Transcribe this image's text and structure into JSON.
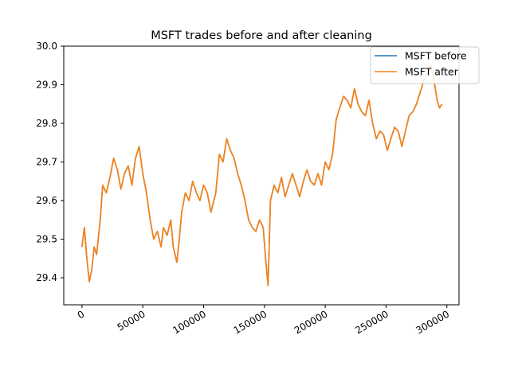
{
  "chart_data": {
    "type": "line",
    "title": "MSFT trades before and after cleaning",
    "xlabel": "",
    "ylabel": "",
    "xlim": [
      -15000,
      310000
    ],
    "ylim": [
      29.33,
      30.0
    ],
    "x_ticks": [
      0,
      50000,
      100000,
      150000,
      200000,
      250000,
      300000
    ],
    "x_tick_labels": [
      "0",
      "50000",
      "100000",
      "150000",
      "200000",
      "250000",
      "300000"
    ],
    "y_ticks": [
      29.4,
      29.5,
      29.6,
      29.7,
      29.8,
      29.9,
      30.0
    ],
    "y_tick_labels": [
      "29.4",
      "29.5",
      "29.6",
      "29.7",
      "29.8",
      "29.9",
      "30.0"
    ],
    "grid": false,
    "legend_position": "top-right",
    "series": [
      {
        "name": "MSFT before",
        "color": "#1f77b4",
        "x": [
          0,
          2000,
          4000,
          6000,
          8000,
          10000,
          12000,
          15000,
          17000,
          20000,
          23000,
          26000,
          29000,
          32000,
          35000,
          38000,
          41000,
          44000,
          47000,
          50000,
          53000,
          56000,
          59000,
          62000,
          65000,
          67000,
          70000,
          73000,
          75000,
          78000,
          80000,
          82000,
          85000,
          88000,
          91000,
          94000,
          97000,
          100000,
          103000,
          106000,
          110000,
          113000,
          116000,
          119000,
          122000,
          125000,
          128000,
          131000,
          134000,
          137000,
          140000,
          143000,
          146000,
          149000,
          151000,
          153000,
          155000,
          158000,
          161000,
          164000,
          167000,
          170000,
          173000,
          176000,
          179000,
          182000,
          185000,
          188000,
          191000,
          194000,
          197000,
          200000,
          203000,
          206000,
          209000,
          212000,
          215000,
          218000,
          221000,
          224000,
          227000,
          230000,
          233000,
          236000,
          239000,
          242000,
          245000,
          248000,
          251000,
          254000,
          257000,
          260000,
          263000,
          266000,
          269000,
          272000,
          275000,
          278000,
          281000,
          284000,
          287000,
          290000,
          292000,
          294000,
          296000
        ],
        "values": [
          29.48,
          29.53,
          29.45,
          29.39,
          29.42,
          29.48,
          29.46,
          29.55,
          29.64,
          29.62,
          29.66,
          29.71,
          29.68,
          29.63,
          29.67,
          29.69,
          29.64,
          29.71,
          29.74,
          29.67,
          29.62,
          29.55,
          29.5,
          29.52,
          29.48,
          29.53,
          29.51,
          29.55,
          29.48,
          29.44,
          29.5,
          29.57,
          29.62,
          29.6,
          29.65,
          29.62,
          29.6,
          29.64,
          29.62,
          29.57,
          29.62,
          29.72,
          29.7,
          29.76,
          29.73,
          29.71,
          29.67,
          29.64,
          29.6,
          29.55,
          29.53,
          29.52,
          29.55,
          29.53,
          29.45,
          29.38,
          29.6,
          29.64,
          29.62,
          29.66,
          29.61,
          29.64,
          29.67,
          29.64,
          29.61,
          29.65,
          29.68,
          29.65,
          29.64,
          29.67,
          29.64,
          29.7,
          29.68,
          29.72,
          29.81,
          29.84,
          29.87,
          29.86,
          29.84,
          29.89,
          29.85,
          29.83,
          29.82,
          29.86,
          29.8,
          29.76,
          29.78,
          29.77,
          29.73,
          29.76,
          29.79,
          29.78,
          29.74,
          29.78,
          29.82,
          29.83,
          29.85,
          29.88,
          29.91,
          29.93,
          29.95,
          29.9,
          29.86,
          29.84,
          29.85
        ]
      },
      {
        "name": "MSFT after",
        "color": "#ff7f0e",
        "x": [
          0,
          2000,
          4000,
          6000,
          8000,
          10000,
          12000,
          15000,
          17000,
          20000,
          23000,
          26000,
          29000,
          32000,
          35000,
          38000,
          41000,
          44000,
          47000,
          50000,
          53000,
          56000,
          59000,
          62000,
          65000,
          67000,
          70000,
          73000,
          75000,
          78000,
          80000,
          82000,
          85000,
          88000,
          91000,
          94000,
          97000,
          100000,
          103000,
          106000,
          110000,
          113000,
          116000,
          119000,
          122000,
          125000,
          128000,
          131000,
          134000,
          137000,
          140000,
          143000,
          146000,
          149000,
          151000,
          153000,
          155000,
          158000,
          161000,
          164000,
          167000,
          170000,
          173000,
          176000,
          179000,
          182000,
          185000,
          188000,
          191000,
          194000,
          197000,
          200000,
          203000,
          206000,
          209000,
          212000,
          215000,
          218000,
          221000,
          224000,
          227000,
          230000,
          233000,
          236000,
          239000,
          242000,
          245000,
          248000,
          251000,
          254000,
          257000,
          260000,
          263000,
          266000,
          269000,
          272000,
          275000,
          278000,
          281000,
          284000,
          287000,
          290000,
          292000,
          294000,
          296000
        ],
        "values": [
          29.48,
          29.53,
          29.45,
          29.39,
          29.42,
          29.48,
          29.46,
          29.55,
          29.64,
          29.62,
          29.66,
          29.71,
          29.68,
          29.63,
          29.67,
          29.69,
          29.64,
          29.71,
          29.74,
          29.67,
          29.62,
          29.55,
          29.5,
          29.52,
          29.48,
          29.53,
          29.51,
          29.55,
          29.48,
          29.44,
          29.5,
          29.57,
          29.62,
          29.6,
          29.65,
          29.62,
          29.6,
          29.64,
          29.62,
          29.57,
          29.62,
          29.72,
          29.7,
          29.76,
          29.73,
          29.71,
          29.67,
          29.64,
          29.6,
          29.55,
          29.53,
          29.52,
          29.55,
          29.53,
          29.45,
          29.38,
          29.6,
          29.64,
          29.62,
          29.66,
          29.61,
          29.64,
          29.67,
          29.64,
          29.61,
          29.65,
          29.68,
          29.65,
          29.64,
          29.67,
          29.64,
          29.7,
          29.68,
          29.72,
          29.81,
          29.84,
          29.87,
          29.86,
          29.84,
          29.89,
          29.85,
          29.83,
          29.82,
          29.86,
          29.8,
          29.76,
          29.78,
          29.77,
          29.73,
          29.76,
          29.79,
          29.78,
          29.74,
          29.78,
          29.82,
          29.83,
          29.85,
          29.88,
          29.91,
          29.93,
          29.95,
          29.9,
          29.86,
          29.84,
          29.85
        ]
      }
    ]
  }
}
